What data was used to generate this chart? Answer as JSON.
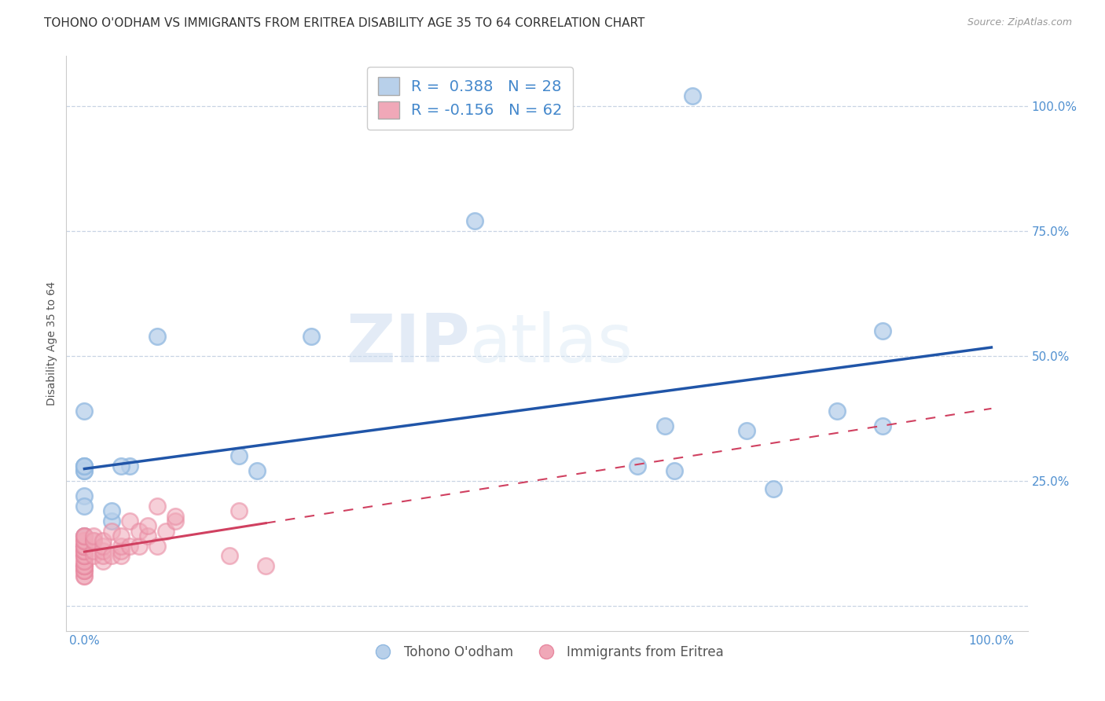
{
  "title": "TOHONO O'ODHAM VS IMMIGRANTS FROM ERITREA DISABILITY AGE 35 TO 64 CORRELATION CHART",
  "source": "Source: ZipAtlas.com",
  "ylabel": "Disability Age 35 to 64",
  "xlim": [
    -0.02,
    1.04
  ],
  "ylim": [
    -0.05,
    1.1
  ],
  "blue_r": 0.388,
  "blue_n": 28,
  "pink_r": -0.156,
  "pink_n": 62,
  "blue_color": "#b8d0ea",
  "pink_color": "#f0a8b8",
  "blue_edge_color": "#90b8e0",
  "pink_edge_color": "#e888a0",
  "blue_line_color": "#2055a8",
  "pink_line_color": "#d04060",
  "pink_line_solid_end": 0.2,
  "legend1_label": "Tohono O'odham",
  "legend2_label": "Immigrants from Eritrea",
  "watermark_zip": "ZIP",
  "watermark_atlas": "atlas",
  "blue_scatter_x": [
    0.67,
    0.43,
    0.08,
    0.0,
    0.0,
    0.0,
    0.0,
    0.0,
    0.03,
    0.05,
    0.03,
    0.04,
    0.17,
    0.0,
    0.0,
    0.61,
    0.64,
    0.83,
    0.65,
    0.76,
    0.73,
    0.88,
    0.88,
    0.25,
    0.19,
    0.0,
    0.0,
    0.0
  ],
  "blue_scatter_y": [
    1.02,
    0.77,
    0.54,
    0.28,
    0.39,
    0.27,
    0.27,
    0.28,
    0.17,
    0.28,
    0.19,
    0.28,
    0.3,
    0.14,
    0.22,
    0.28,
    0.36,
    0.39,
    0.27,
    0.235,
    0.35,
    0.36,
    0.55,
    0.54,
    0.27,
    0.12,
    0.2,
    0.28
  ],
  "pink_scatter_x": [
    0.0,
    0.0,
    0.0,
    0.0,
    0.0,
    0.0,
    0.0,
    0.0,
    0.0,
    0.0,
    0.0,
    0.0,
    0.0,
    0.0,
    0.0,
    0.0,
    0.0,
    0.0,
    0.0,
    0.0,
    0.0,
    0.0,
    0.0,
    0.0,
    0.0,
    0.0,
    0.0,
    0.0,
    0.0,
    0.0,
    0.0,
    0.0,
    0.01,
    0.01,
    0.01,
    0.01,
    0.01,
    0.02,
    0.02,
    0.02,
    0.02,
    0.02,
    0.03,
    0.03,
    0.04,
    0.04,
    0.04,
    0.04,
    0.05,
    0.05,
    0.06,
    0.06,
    0.07,
    0.07,
    0.08,
    0.08,
    0.09,
    0.1,
    0.1,
    0.16,
    0.17,
    0.2
  ],
  "pink_scatter_y": [
    0.06,
    0.06,
    0.07,
    0.07,
    0.07,
    0.08,
    0.08,
    0.08,
    0.08,
    0.08,
    0.09,
    0.09,
    0.1,
    0.1,
    0.1,
    0.1,
    0.11,
    0.11,
    0.11,
    0.11,
    0.12,
    0.12,
    0.12,
    0.12,
    0.12,
    0.12,
    0.13,
    0.13,
    0.13,
    0.14,
    0.14,
    0.14,
    0.1,
    0.11,
    0.13,
    0.13,
    0.14,
    0.09,
    0.1,
    0.11,
    0.12,
    0.13,
    0.1,
    0.15,
    0.1,
    0.11,
    0.12,
    0.14,
    0.12,
    0.17,
    0.12,
    0.15,
    0.14,
    0.16,
    0.12,
    0.2,
    0.15,
    0.17,
    0.18,
    0.1,
    0.19,
    0.08
  ],
  "background_color": "#ffffff",
  "grid_color": "#c8d4e4",
  "title_fontsize": 11,
  "axis_label_fontsize": 10,
  "tick_fontsize": 11,
  "tick_color": "#5090d0",
  "scatter_size": 220,
  "scatter_linewidth": 1.8
}
